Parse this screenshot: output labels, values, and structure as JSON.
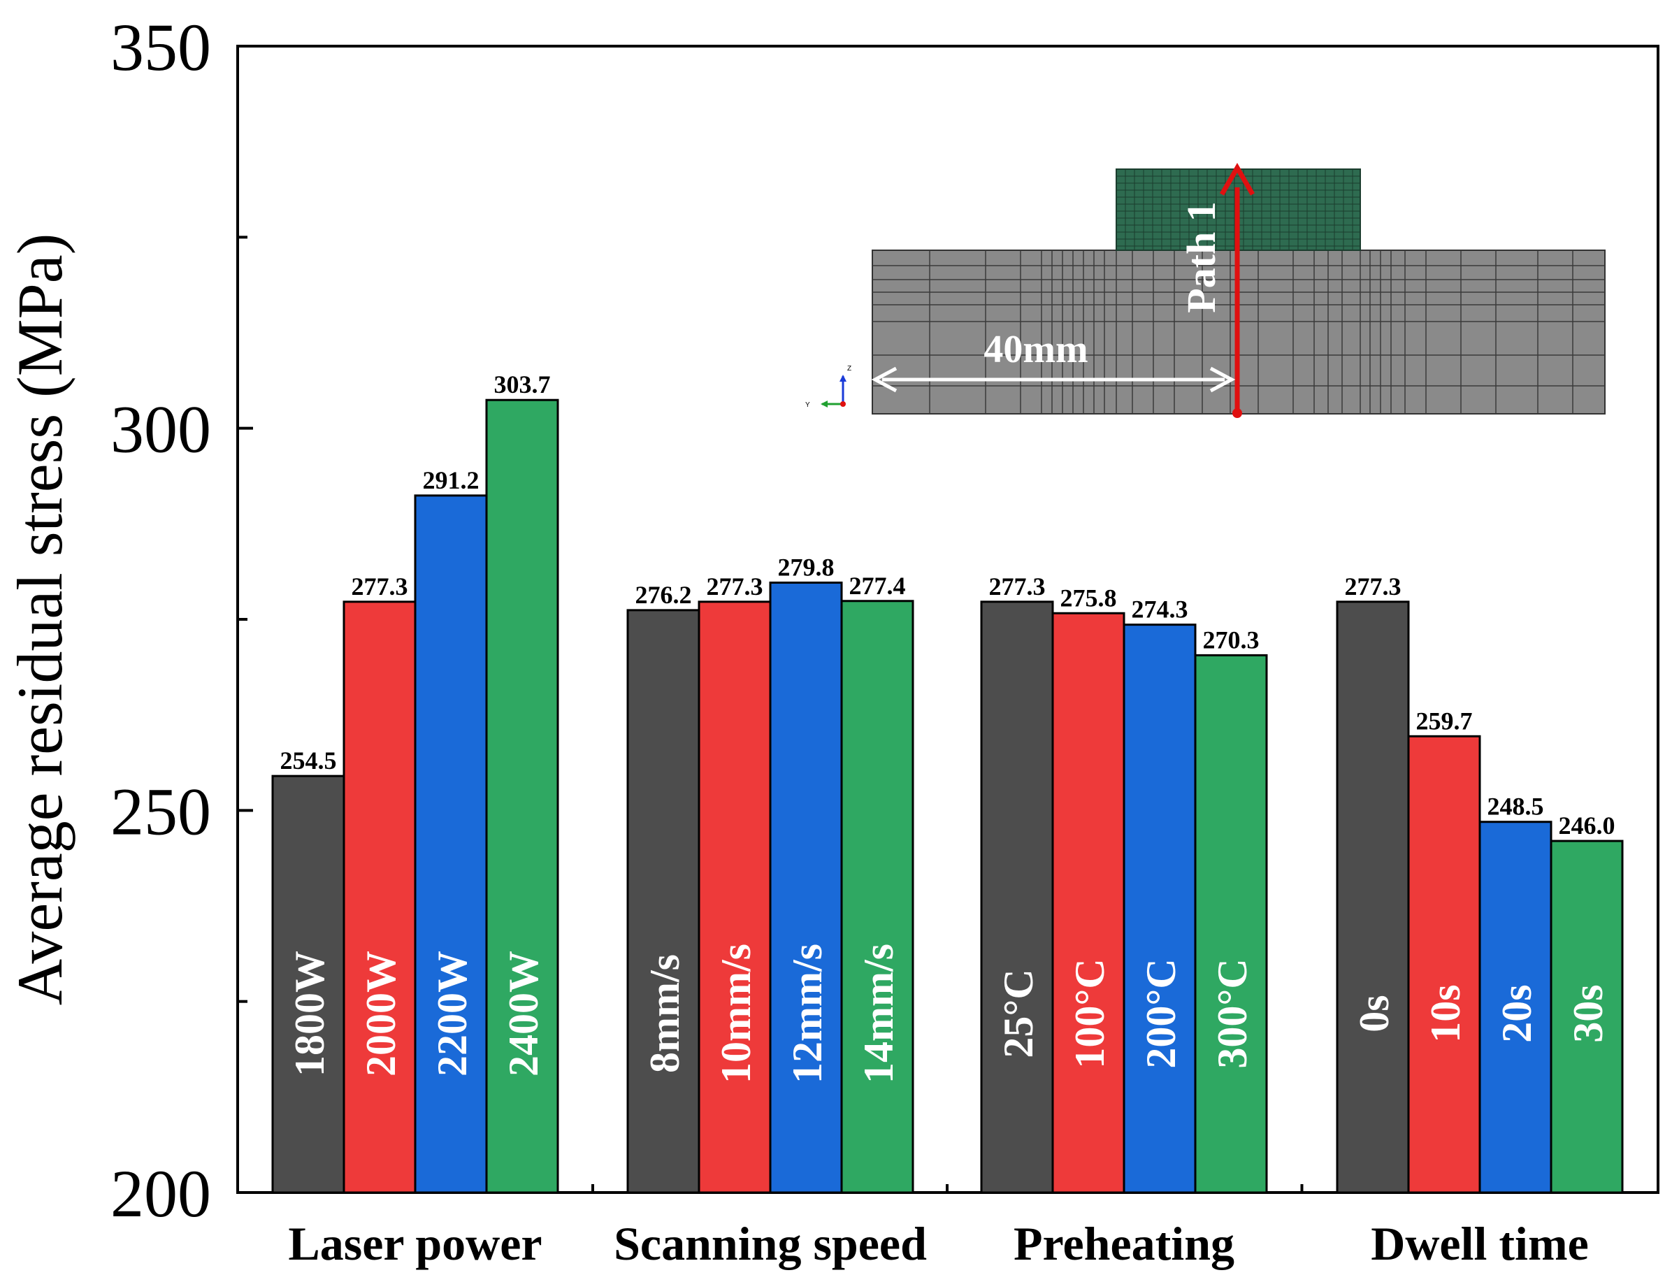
{
  "chart_data": {
    "type": "bar",
    "title": "",
    "xlabel": "",
    "ylabel": "Average residual stress (MPa)",
    "ylim": [
      200,
      350
    ],
    "yticks": [
      200,
      250,
      300,
      350
    ],
    "grid": false,
    "colors": [
      "#4d4d4d",
      "#ee3a3a",
      "#1a6ad8",
      "#2fa862"
    ],
    "groups": [
      {
        "name": "Laser power",
        "bars": [
          {
            "label": "1800W",
            "value": 254.5,
            "value_text": "254.5"
          },
          {
            "label": "2000W",
            "value": 277.3,
            "value_text": "277.3"
          },
          {
            "label": "2200W",
            "value": 291.2,
            "value_text": "291.2"
          },
          {
            "label": "2400W",
            "value": 303.7,
            "value_text": "303.7"
          }
        ]
      },
      {
        "name": "Scanning speed",
        "bars": [
          {
            "label": "8mm/s",
            "value": 276.2,
            "value_text": "276.2"
          },
          {
            "label": "10mm/s",
            "value": 277.3,
            "value_text": "277.3"
          },
          {
            "label": "12mm/s",
            "value": 279.8,
            "value_text": "279.8"
          },
          {
            "label": "14mm/s",
            "value": 277.4,
            "value_text": "277.4"
          }
        ]
      },
      {
        "name": "Preheating",
        "bars": [
          {
            "label": "25°C",
            "value": 277.3,
            "value_text": "277.3"
          },
          {
            "label": "100°C",
            "value": 275.8,
            "value_text": "275.8"
          },
          {
            "label": "200°C",
            "value": 274.3,
            "value_text": "274.3"
          },
          {
            "label": "300°C",
            "value": 270.3,
            "value_text": "270.3"
          }
        ]
      },
      {
        "name": "Dwell time",
        "bars": [
          {
            "label": "0s",
            "value": 277.3,
            "value_text": "277.3"
          },
          {
            "label": "10s",
            "value": 259.7,
            "value_text": "259.7"
          },
          {
            "label": "20s",
            "value": 248.5,
            "value_text": "248.5"
          },
          {
            "label": "30s",
            "value": 246.0,
            "value_text": "246.0"
          }
        ]
      }
    ],
    "inset": {
      "path_label": "Path 1",
      "distance_label": "40mm",
      "axis_z": "Z",
      "axis_y": "Y",
      "substrate_color": "#8a8a8a",
      "deposit_color": "#2e6b50",
      "arrow_color": "#e01010"
    }
  }
}
